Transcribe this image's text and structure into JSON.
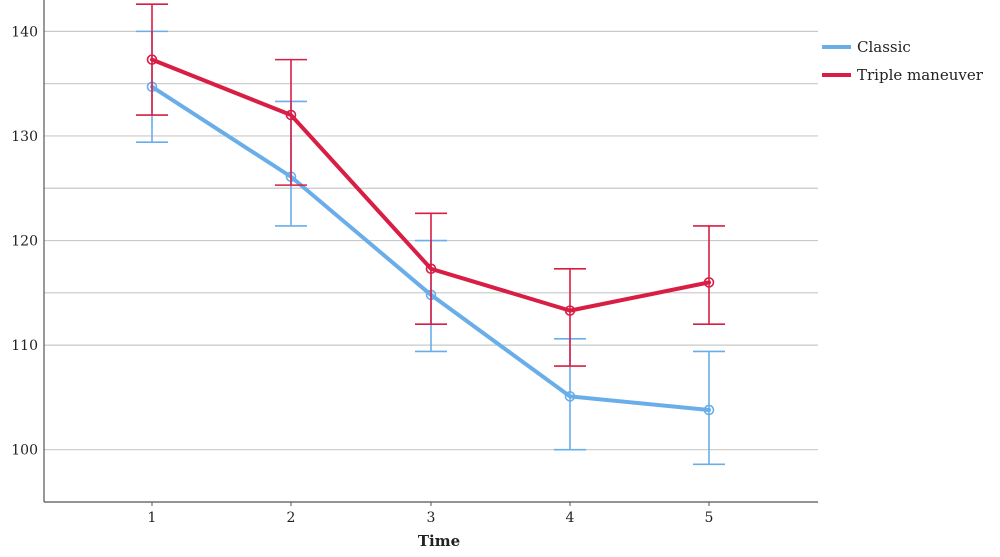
{
  "chart_data": {
    "type": "line",
    "title": "",
    "xlabel": "Time",
    "ylabel": "",
    "categories": [
      "1",
      "2",
      "3",
      "4",
      "5"
    ],
    "ylim": [
      95,
      143
    ],
    "yticks": [
      100,
      110,
      120,
      130,
      140
    ],
    "grid": "horizontal",
    "legend_position": "top-right",
    "error_bars": true,
    "series": [
      {
        "name": "Classic",
        "color": "#6aaee9",
        "values": [
          134.7,
          126.1,
          114.8,
          105.1,
          103.8
        ],
        "err_low": [
          129.4,
          121.4,
          109.4,
          100.0,
          98.6
        ],
        "err_high": [
          140.0,
          133.3,
          120.0,
          110.6,
          109.4
        ]
      },
      {
        "name": "Triple maneuver",
        "color": "#d81e45",
        "values": [
          137.3,
          132.0,
          117.3,
          113.3,
          116.0
        ],
        "err_low": [
          132.0,
          125.3,
          112.0,
          108.0,
          112.0
        ],
        "err_high": [
          142.6,
          137.3,
          122.6,
          117.3,
          121.4
        ]
      }
    ]
  }
}
